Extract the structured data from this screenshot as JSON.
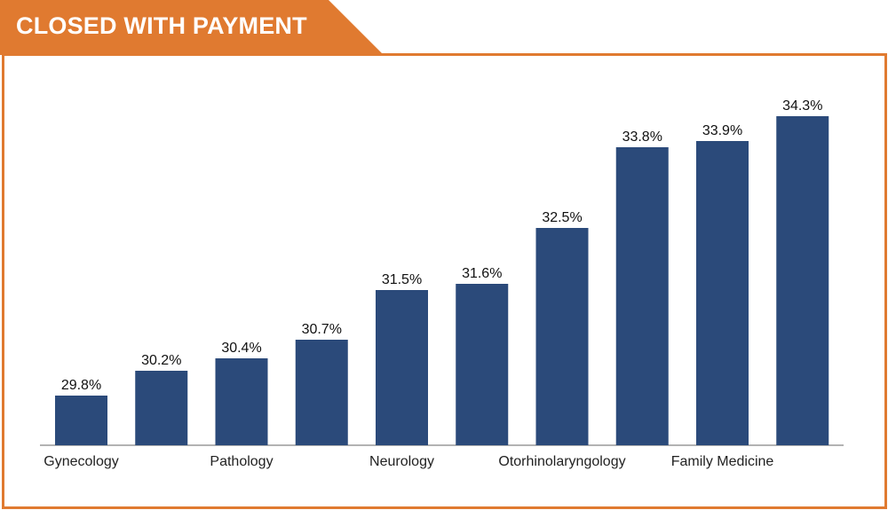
{
  "header": {
    "title": "CLOSED WITH  PAYMENT"
  },
  "colors": {
    "accent": "#e07a30",
    "bar": "#2b4a7a",
    "axis": "#9a9a9a"
  },
  "chart_data": {
    "type": "bar",
    "title": "CLOSED WITH  PAYMENT",
    "categories": [
      "Gynecology",
      "",
      "Pathology",
      "",
      "Neurology",
      "",
      "Otorhinolaryngology",
      "",
      "Family Medicine",
      ""
    ],
    "values": [
      29.8,
      30.2,
      30.4,
      30.7,
      31.5,
      31.6,
      32.5,
      33.8,
      33.9,
      34.3
    ],
    "value_labels": [
      "29.8%",
      "30.2%",
      "30.4%",
      "30.7%",
      "31.5%",
      "31.6%",
      "32.5%",
      "33.8%",
      "33.9%",
      "34.3%"
    ],
    "xlabel": "",
    "ylabel": "",
    "ylim": [
      29.0,
      34.6
    ],
    "grid": false,
    "legend": "none"
  }
}
